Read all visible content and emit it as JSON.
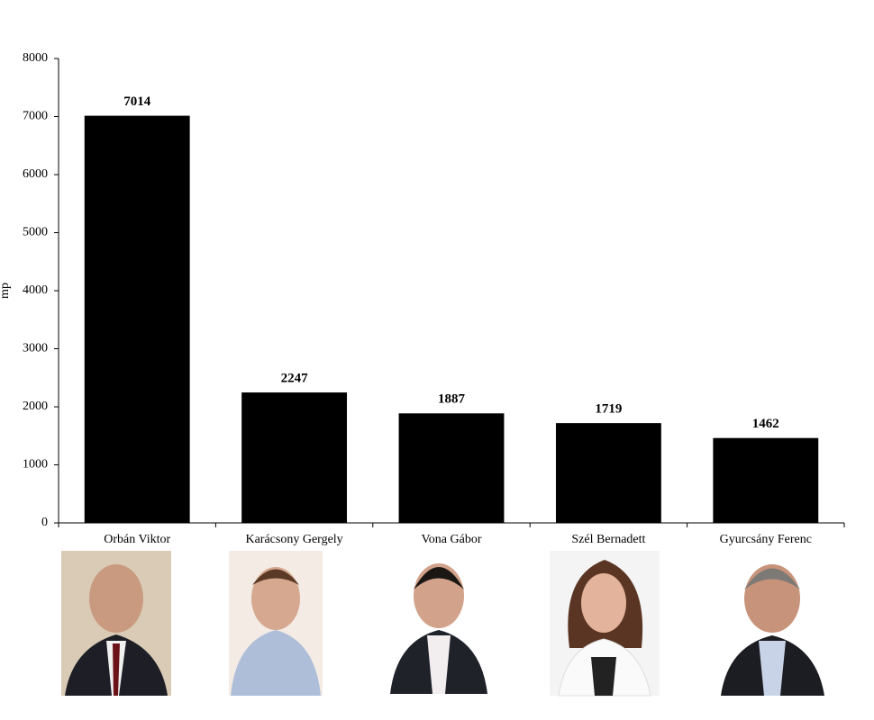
{
  "chart_data": {
    "type": "bar",
    "y_label": "mp",
    "categories": [
      "Orbán Viktor",
      "Karácsony Gergely",
      "Vona Gábor",
      "Szél Bernadett",
      "Gyurcsány Ferenc"
    ],
    "values": [
      7014,
      2247,
      1887,
      1719,
      1462
    ],
    "color": "#000000",
    "ylim": [
      0,
      8000
    ],
    "yticks": [
      0,
      1000,
      2000,
      3000,
      4000,
      5000,
      6000,
      7000,
      8000
    ]
  }
}
